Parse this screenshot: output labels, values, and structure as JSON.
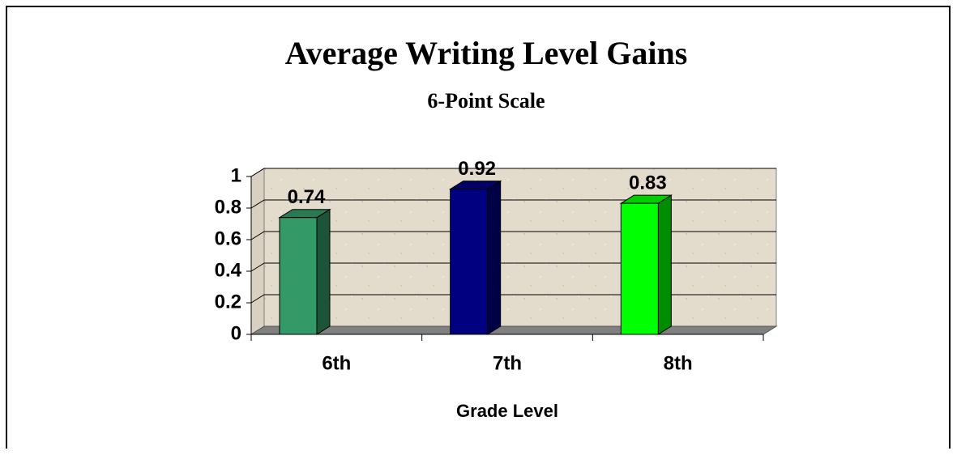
{
  "chart_data": {
    "type": "bar3d",
    "title": "Average Writing Level Gains",
    "subtitle": "6-Point Scale",
    "x_label": "Grade Level",
    "categories": [
      "6th",
      "7th",
      "8th"
    ],
    "values": [
      0.74,
      0.92,
      0.83
    ],
    "colors": [
      "#339966",
      "#000080",
      "#00ff00"
    ],
    "ylim": [
      0,
      1
    ],
    "yticks": [
      0,
      0.2,
      0.4,
      0.6,
      0.8,
      1
    ],
    "grid": true
  }
}
